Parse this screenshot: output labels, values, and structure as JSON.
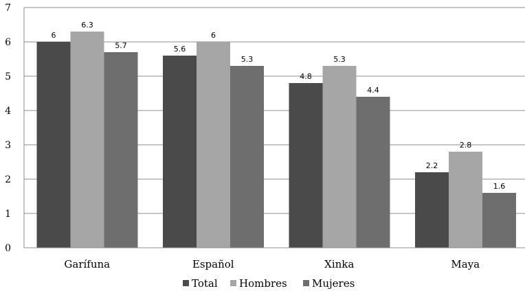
{
  "chart_data": {
    "type": "bar",
    "categories": [
      "Garífuna",
      "Español",
      "Xinka",
      "Maya"
    ],
    "series": [
      {
        "name": "Total",
        "values": [
          6,
          5.6,
          4.8,
          2.2
        ],
        "color": "#4a4a4a"
      },
      {
        "name": "Hombres",
        "values": [
          6.3,
          6,
          5.3,
          2.8
        ],
        "color": "#a6a6a6"
      },
      {
        "name": "Mujeres",
        "values": [
          5.7,
          5.3,
          4.4,
          1.6
        ],
        "color": "#6e6e6e"
      }
    ],
    "data_labels": [
      [
        "6",
        "5.6",
        "4.8",
        "2.2"
      ],
      [
        "6.3",
        "6",
        "5.3",
        "2.8"
      ],
      [
        "5.7",
        "5.3",
        "4.4",
        "1.6"
      ]
    ],
    "title": "",
    "xlabel": "",
    "ylabel": "",
    "ylim": [
      0,
      7
    ],
    "yticks": [
      "0",
      "1",
      "2",
      "3",
      "4",
      "5",
      "6",
      "7"
    ],
    "grid": true,
    "legend_position": "bottom"
  }
}
